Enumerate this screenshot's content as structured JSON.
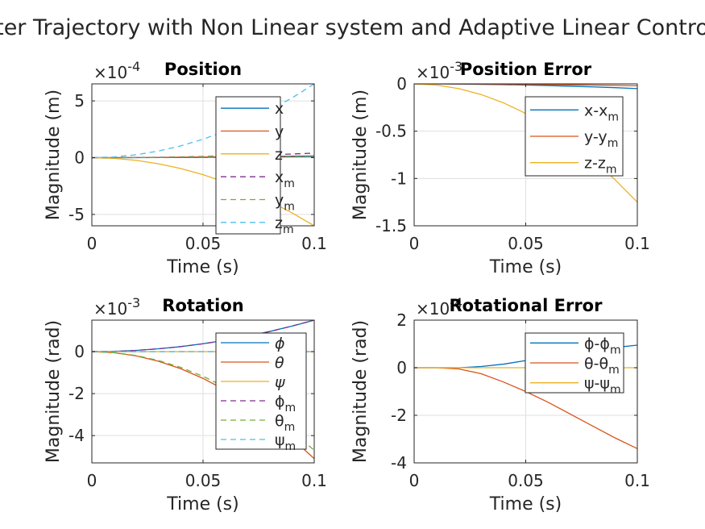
{
  "figure": {
    "title": "ter Trajectory with Non Linear system and Adaptive Linear Contro"
  },
  "chart_data": [
    {
      "type": "line",
      "title": "Position",
      "xlabel": "Time (s)",
      "ylabel": "Magnitude (m)",
      "y_exponent": "×10-4",
      "xlim": [
        0,
        0.1
      ],
      "ylim": [
        -6,
        6.5
      ],
      "xticks": [
        0,
        0.05,
        0.1
      ],
      "xtick_labels": [
        "0",
        "0.05",
        "0.1"
      ],
      "yticks": [
        -5,
        0,
        5
      ],
      "ytick_labels": [
        "-5",
        "0",
        "5"
      ],
      "x": [
        0,
        0.01,
        0.02,
        0.03,
        0.04,
        0.05,
        0.06,
        0.07,
        0.08,
        0.09,
        0.1
      ],
      "legend": {
        "position": "right"
      },
      "series": [
        {
          "name": "x",
          "color": "#0072BD",
          "dash": false,
          "values": [
            0,
            0.001,
            0.004,
            0.009,
            0.016,
            0.025,
            0.036,
            0.049,
            0.064,
            0.081,
            0.1
          ]
        },
        {
          "name": "y",
          "color": "#D95319",
          "dash": false,
          "values": [
            0,
            0.002,
            0.008,
            0.02,
            0.04,
            0.06,
            0.08,
            0.1,
            0.12,
            0.14,
            0.16
          ]
        },
        {
          "name": "z",
          "color": "#EDB120",
          "dash": false,
          "values": [
            0,
            -0.06,
            -0.24,
            -0.54,
            -0.96,
            -1.5,
            -2.16,
            -2.94,
            -3.84,
            -4.86,
            -6.0
          ]
        },
        {
          "name": "xm",
          "label": "x",
          "sub": "m",
          "color": "#7E2F8E",
          "dash": true,
          "values": [
            0,
            0.004,
            0.016,
            0.036,
            0.064,
            0.1,
            0.144,
            0.196,
            0.256,
            0.324,
            0.4
          ]
        },
        {
          "name": "ym",
          "label": "y",
          "sub": "m",
          "color": "#77AC30",
          "dash": true,
          "values": [
            0,
            0.002,
            0.008,
            0.02,
            0.04,
            0.06,
            0.08,
            0.1,
            0.12,
            0.14,
            0.16
          ]
        },
        {
          "name": "zm",
          "label": "z",
          "sub": "m",
          "color": "#4DBEEE",
          "dash": true,
          "values": [
            0,
            0.065,
            0.26,
            0.585,
            1.04,
            1.625,
            2.34,
            3.185,
            4.16,
            5.265,
            6.5
          ]
        }
      ]
    },
    {
      "type": "line",
      "title": "Position Error",
      "xlabel": "Time (s)",
      "ylabel": "Magnitude (m)",
      "y_exponent": "×10-3",
      "xlim": [
        0,
        0.1
      ],
      "ylim": [
        -1.5,
        0
      ],
      "xticks": [
        0,
        0.05,
        0.1
      ],
      "xtick_labels": [
        "0",
        "0.05",
        "0.1"
      ],
      "yticks": [
        -1.5,
        -1,
        -0.5,
        0
      ],
      "ytick_labels": [
        "-1.5",
        "-1",
        "-0.5",
        "0"
      ],
      "x": [
        0,
        0.01,
        0.02,
        0.03,
        0.04,
        0.05,
        0.06,
        0.07,
        0.08,
        0.09,
        0.1
      ],
      "legend": {
        "position": "right"
      },
      "series": [
        {
          "name": "x-xm",
          "label": "x-x",
          "sub": "m",
          "color": "#0072BD",
          "dash": false,
          "values": [
            0,
            0,
            -0.002,
            -0.005,
            -0.008,
            -0.013,
            -0.018,
            -0.025,
            -0.032,
            -0.04,
            -0.05
          ]
        },
        {
          "name": "y-ym",
          "label": "y-y",
          "sub": "m",
          "color": "#D95319",
          "dash": false,
          "values": [
            0,
            0,
            -0.001,
            -0.002,
            -0.004,
            -0.006,
            -0.008,
            -0.01,
            -0.013,
            -0.016,
            -0.02
          ]
        },
        {
          "name": "z-zm",
          "label": "z-z",
          "sub": "m",
          "color": "#EDB120",
          "dash": false,
          "values": [
            0,
            -0.0125,
            -0.05,
            -0.1125,
            -0.2,
            -0.3125,
            -0.45,
            -0.6125,
            -0.8,
            -1.0125,
            -1.25
          ]
        }
      ]
    },
    {
      "type": "line",
      "title": "Rotation",
      "xlabel": "Time (s)",
      "ylabel": "Magnitude (rad)",
      "y_exponent": "×10-3",
      "xlim": [
        0,
        0.1
      ],
      "ylim": [
        -5.3,
        1.5
      ],
      "xticks": [
        0,
        0.05,
        0.1
      ],
      "xtick_labels": [
        "0",
        "0.05",
        "0.1"
      ],
      "yticks": [
        -4,
        -2,
        0
      ],
      "ytick_labels": [
        "-4",
        "-2",
        "0"
      ],
      "x": [
        0,
        0.01,
        0.02,
        0.03,
        0.04,
        0.05,
        0.06,
        0.07,
        0.08,
        0.09,
        0.1
      ],
      "legend": {
        "position": "right"
      },
      "series": [
        {
          "name": "phi",
          "label": "ϕ",
          "color": "#0072BD",
          "dash": false,
          "values": [
            0,
            0.015,
            0.06,
            0.135,
            0.24,
            0.375,
            0.54,
            0.735,
            0.96,
            1.215,
            1.5
          ]
        },
        {
          "name": "theta",
          "label": "θ",
          "color": "#D95319",
          "dash": false,
          "values": [
            0,
            -0.051,
            -0.204,
            -0.459,
            -0.816,
            -1.275,
            -1.836,
            -2.499,
            -3.264,
            -4.131,
            -5.1
          ]
        },
        {
          "name": "psi",
          "label": "ψ",
          "color": "#EDB120",
          "dash": false,
          "values": [
            0,
            0,
            0,
            0,
            0,
            0,
            0,
            0,
            0,
            0,
            0
          ]
        },
        {
          "name": "phim",
          "label": "ϕ",
          "sub": "m",
          "color": "#7E2F8E",
          "dash": true,
          "values": [
            0,
            0.015,
            0.06,
            0.135,
            0.24,
            0.375,
            0.54,
            0.735,
            0.96,
            1.215,
            1.5
          ]
        },
        {
          "name": "thetam",
          "label": "θ",
          "sub": "m",
          "color": "#77AC30",
          "dash": true,
          "values": [
            0,
            -0.047,
            -0.188,
            -0.423,
            -0.752,
            -1.175,
            -1.692,
            -2.303,
            -3.008,
            -3.807,
            -4.7
          ]
        },
        {
          "name": "psim",
          "label": "ψ",
          "sub": "m",
          "color": "#4DBEEE",
          "dash": true,
          "values": [
            0,
            0,
            0,
            0,
            0,
            0,
            0,
            0,
            0,
            0,
            0
          ]
        }
      ]
    },
    {
      "type": "line",
      "title": "Rotational Error",
      "xlabel": "Time (s)",
      "ylabel": "Magnitude (rad)",
      "y_exponent": "×10-4",
      "xlim": [
        0,
        0.1
      ],
      "ylim": [
        -4,
        2
      ],
      "xticks": [
        0,
        0.05,
        0.1
      ],
      "xtick_labels": [
        "0",
        "0.05",
        "0.1"
      ],
      "yticks": [
        -4,
        -2,
        0,
        2
      ],
      "ytick_labels": [
        "-4",
        "-2",
        "0",
        "2"
      ],
      "x": [
        0,
        0.01,
        0.02,
        0.03,
        0.04,
        0.05,
        0.06,
        0.07,
        0.08,
        0.09,
        0.1
      ],
      "legend": {
        "position": "right"
      },
      "series": [
        {
          "name": "phi-phim",
          "label": "ϕ-ϕ",
          "sub": "m",
          "color": "#0072BD",
          "dash": false,
          "values": [
            0,
            0,
            0,
            0.05,
            0.15,
            0.3,
            0.45,
            0.6,
            0.75,
            0.85,
            0.95
          ]
        },
        {
          "name": "theta-thetam",
          "label": "θ-θ",
          "sub": "m",
          "color": "#D95319",
          "dash": false,
          "values": [
            0,
            0,
            -0.05,
            -0.25,
            -0.6,
            -1.0,
            -1.45,
            -1.95,
            -2.45,
            -2.95,
            -3.4
          ]
        },
        {
          "name": "psi-psim",
          "label": "ψ-ψ",
          "sub": "m",
          "color": "#EDB120",
          "dash": false,
          "values": [
            0,
            0,
            0,
            0,
            0,
            0,
            0,
            0,
            0,
            0,
            0
          ]
        }
      ]
    }
  ]
}
